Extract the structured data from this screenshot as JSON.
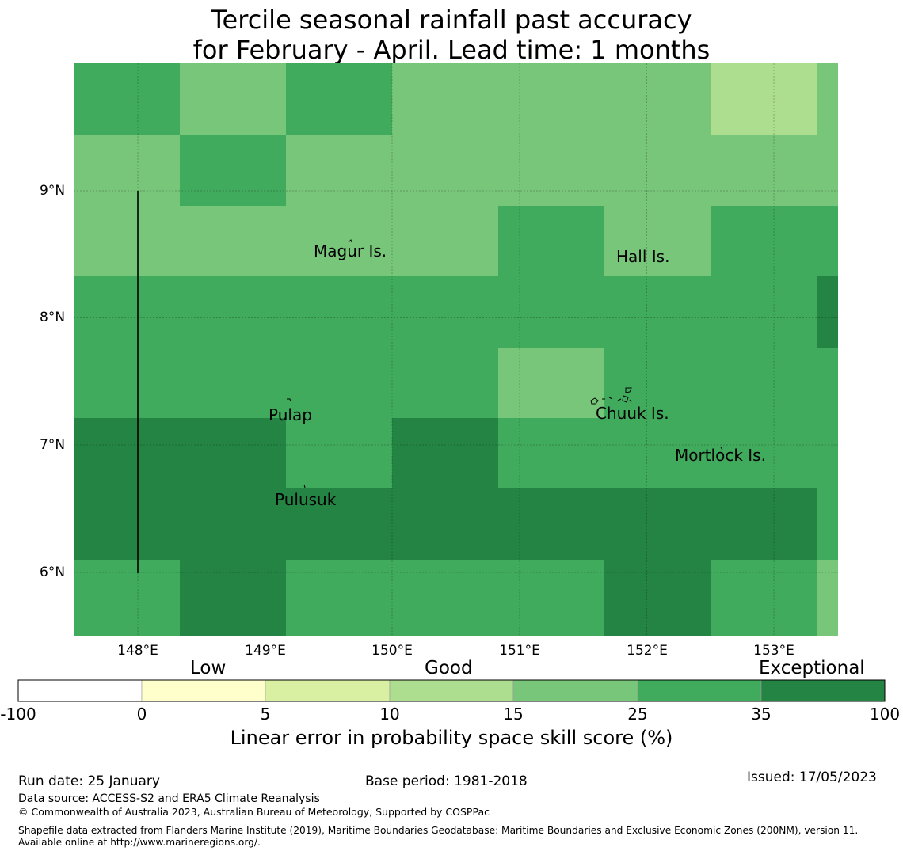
{
  "title": {
    "line1": "Tercile seasonal rainfall past accuracy",
    "line2": "for February - April. Lead time: 1 months"
  },
  "map": {
    "lat_labels": [
      "9°N",
      "8°N",
      "7°N",
      "6°N"
    ],
    "lon_labels": [
      "148°E",
      "149°E",
      "150°E",
      "151°E",
      "152°E",
      "153°E"
    ],
    "places": [
      "Magur Is.",
      "Hall Is.",
      "Pulap",
      "Chuuk Is.",
      "Mortlock Is.",
      "Pulusuk"
    ],
    "grid_rows": [
      [
        "25-35",
        "15-25",
        "25-35",
        "15-25",
        "15-25",
        "15-25",
        "10-15",
        "15-25"
      ],
      [
        "15-25",
        "25-35",
        "15-25",
        "15-25",
        "15-25",
        "15-25",
        "15-25",
        "15-25"
      ],
      [
        "15-25",
        "15-25",
        "15-25",
        "15-25",
        "25-35",
        "15-25",
        "25-35",
        "25-35"
      ],
      [
        "25-35",
        "25-35",
        "25-35",
        "25-35",
        "25-35",
        "25-35",
        "25-35",
        "35-100"
      ],
      [
        "25-35",
        "25-35",
        "25-35",
        "25-35",
        "15-25",
        "25-35",
        "25-35",
        "25-35"
      ],
      [
        "35-100",
        "35-100",
        "25-35",
        "35-100",
        "25-35",
        "25-35",
        "25-35",
        "25-35"
      ],
      [
        "35-100",
        "35-100",
        "35-100",
        "35-100",
        "35-100",
        "35-100",
        "35-100",
        "25-35"
      ],
      [
        "25-35",
        "35-100",
        "25-35",
        "25-35",
        "25-35",
        "35-100",
        "25-35",
        "15-25"
      ]
    ]
  },
  "colorbar": {
    "categories": [
      "Low",
      "Good",
      "Exceptional"
    ],
    "ticks": [
      "-100",
      "0",
      "5",
      "10",
      "15",
      "25",
      "35",
      "100"
    ],
    "bins": [
      {
        "range": "-100-0",
        "color": "#ffffff"
      },
      {
        "range": "0-5",
        "color": "#ffffcc"
      },
      {
        "range": "5-10",
        "color": "#d9f0a3"
      },
      {
        "range": "10-15",
        "color": "#addd8e"
      },
      {
        "range": "15-25",
        "color": "#78c679"
      },
      {
        "range": "25-35",
        "color": "#41ab5d"
      },
      {
        "range": "35-100",
        "color": "#238443"
      }
    ],
    "label": "Linear error in probability space skill score (%)"
  },
  "footer": {
    "run_date": "Run date: 25 January",
    "base_period": "Base period: 1981-2018",
    "issued": "Issued: 17/05/2023",
    "data_source": "Data source: ACCESS-S2 and ERA5 Climate Reanalysis",
    "copyright": "© Commonwealth of Australia 2023, Australian Bureau of Meteorology, Supported by COSPPac",
    "shapefile": "Shapefile data extracted from Flanders Marine Institute (2019), Maritime Boundaries Geodatabase: Maritime Boundaries and Exclusive Economic Zones (200NM), version 11. Available online at http://www.marineregions.org/."
  }
}
